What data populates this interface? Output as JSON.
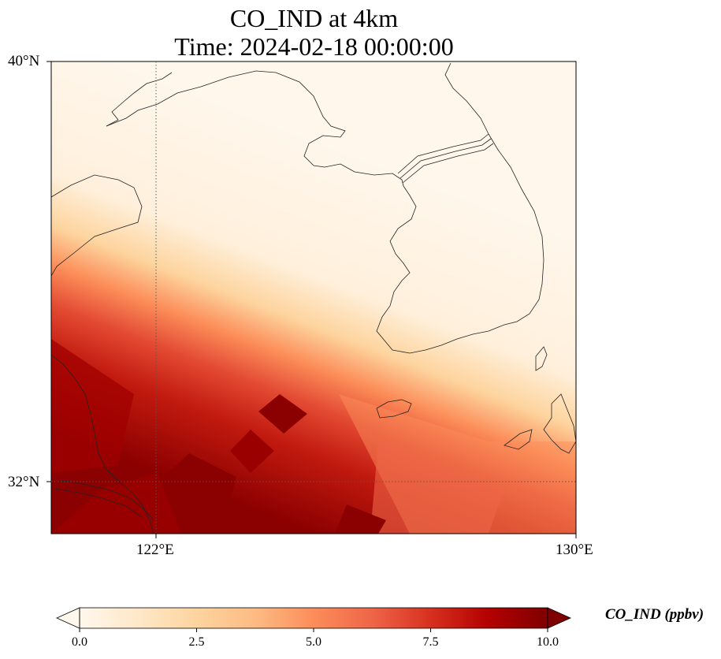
{
  "title": {
    "line1": "CO_IND at 4km",
    "line2": "Time: 2024-02-18 00:00:00"
  },
  "axes": {
    "lat_labels": [
      "40°N",
      "32°N"
    ],
    "lon_labels": [
      "122°E",
      "130°E"
    ],
    "gridlines": "dotted"
  },
  "colorbar": {
    "label": "CO_IND (ppbv)",
    "ticks": [
      "0.0",
      "2.5",
      "5.0",
      "7.5",
      "10.0"
    ],
    "range": [
      0,
      10
    ],
    "extend": "both",
    "colormap": "OrRd",
    "colors": [
      "#fff7ec",
      "#fee8c8",
      "#fdd49e",
      "#fdbb84",
      "#fc8d59",
      "#ef6548",
      "#d7301f",
      "#b30000",
      "#7f0000"
    ]
  },
  "chart_data": {
    "type": "heatmap",
    "variable": "CO_IND",
    "units": "ppbv",
    "lat_range": [
      31,
      40
    ],
    "lon_range": [
      120,
      130
    ]
  }
}
